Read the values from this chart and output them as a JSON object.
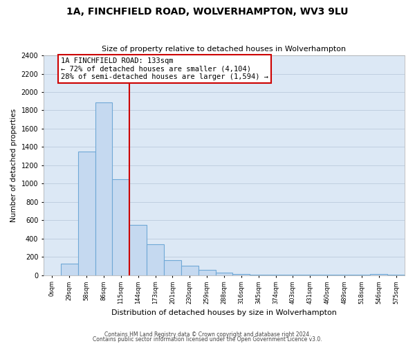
{
  "title": "1A, FINCHFIELD ROAD, WOLVERHAMPTON, WV3 9LU",
  "subtitle": "Size of property relative to detached houses in Wolverhampton",
  "xlabel": "Distribution of detached houses by size in Wolverhampton",
  "ylabel": "Number of detached properties",
  "bin_labels": [
    "0sqm",
    "29sqm",
    "58sqm",
    "86sqm",
    "115sqm",
    "144sqm",
    "173sqm",
    "201sqm",
    "230sqm",
    "259sqm",
    "288sqm",
    "316sqm",
    "345sqm",
    "374sqm",
    "403sqm",
    "431sqm",
    "460sqm",
    "489sqm",
    "518sqm",
    "546sqm",
    "575sqm"
  ],
  "bar_heights": [
    0,
    125,
    1350,
    1890,
    1050,
    550,
    335,
    160,
    105,
    60,
    30,
    10,
    5,
    2,
    2,
    2,
    2,
    2,
    2,
    10,
    2
  ],
  "bar_color": "#c5d9f0",
  "bar_edge_color": "#6fa8d6",
  "vline_color": "#cc0000",
  "annotation_title": "1A FINCHFIELD ROAD: 133sqm",
  "annotation_line1": "← 72% of detached houses are smaller (4,104)",
  "annotation_line2": "28% of semi-detached houses are larger (1,594) →",
  "annotation_box_color": "#ffffff",
  "annotation_box_edge": "#cc0000",
  "ylim": [
    0,
    2400
  ],
  "yticks": [
    0,
    200,
    400,
    600,
    800,
    1000,
    1200,
    1400,
    1600,
    1800,
    2000,
    2200,
    2400
  ],
  "footnote1": "Contains HM Land Registry data © Crown copyright and database right 2024.",
  "footnote2": "Contains public sector information licensed under the Open Government Licence v3.0.",
  "bg_color": "#ffffff",
  "plot_bg_color": "#dce8f5",
  "grid_color": "#c0cfe0"
}
